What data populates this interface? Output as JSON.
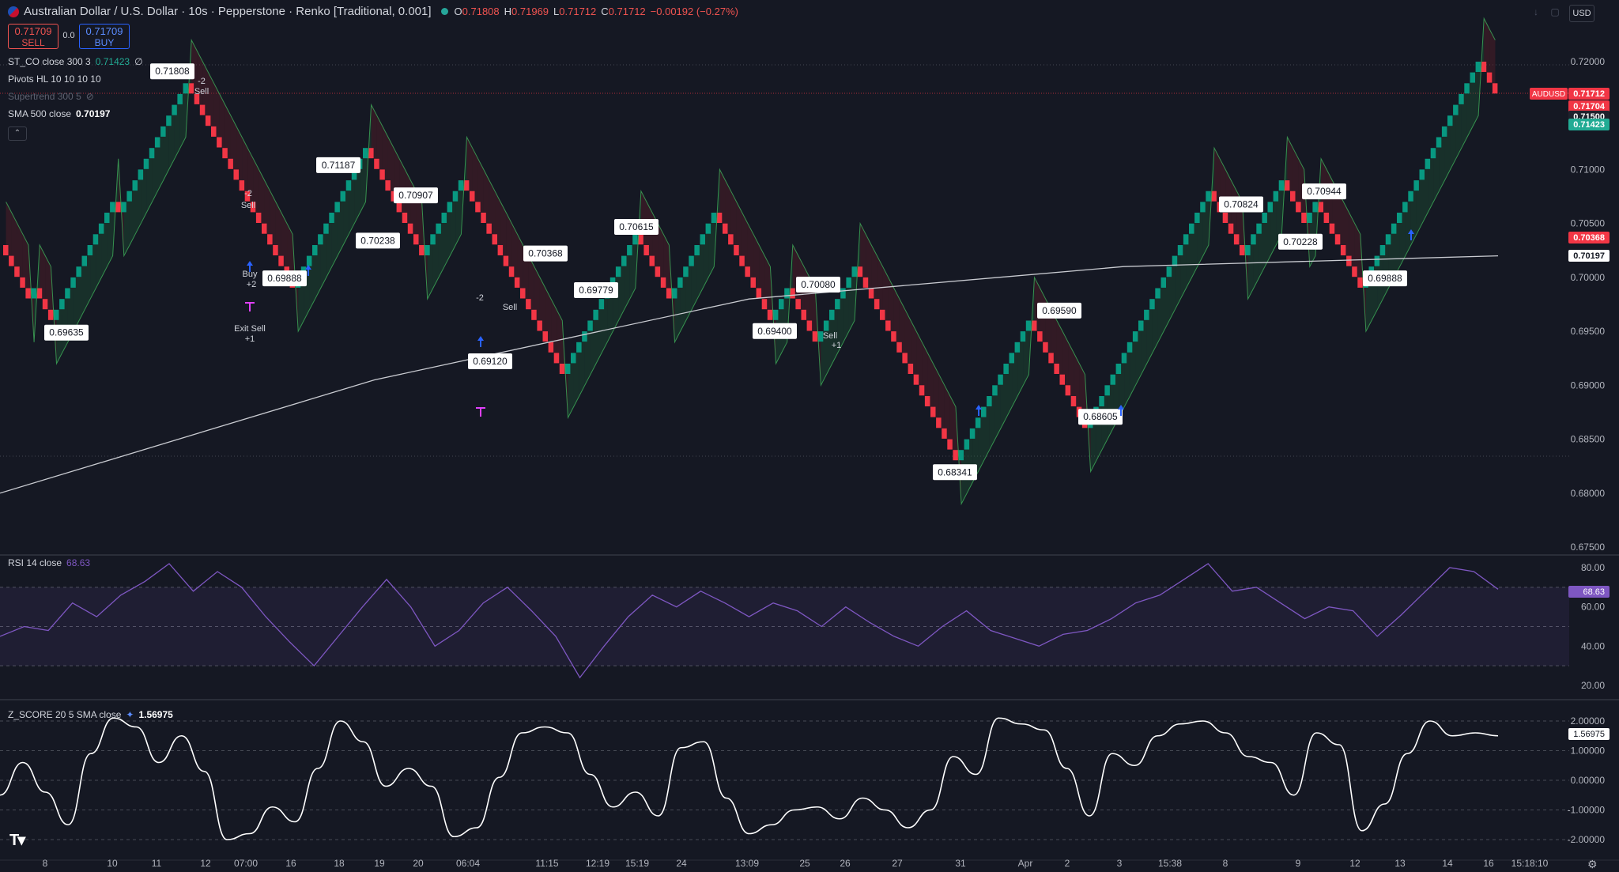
{
  "header": {
    "title": "Australian Dollar / U.S. Dollar · 10s · Pepperstone · Renko [Traditional, 0.001]",
    "open_label": "O",
    "open": "0.71808",
    "high_label": "H",
    "high": "0.71969",
    "low_label": "L",
    "low": "0.71712",
    "close_label": "C",
    "close": "0.71712",
    "change": "−0.00192 (−0.27%)"
  },
  "trade": {
    "sell_price": "0.71709",
    "sell_label": "SELL",
    "buy_price": "0.71709",
    "buy_label": "BUY",
    "spread": "0.0"
  },
  "currency_button": "USD",
  "legend": {
    "st_co": {
      "label": "ST_CO close 300 3",
      "value": "0.71423",
      "extra": "∅"
    },
    "pivots": {
      "label": "Pivots HL 10 10 10 10"
    },
    "supertrend": {
      "label": "Supertrend 300 5"
    },
    "sma": {
      "label": "SMA 500 close",
      "value": "0.70197"
    },
    "rsi": {
      "label": "RSI 14 close",
      "value": "68.63"
    },
    "zscore": {
      "label": "Z_SCORE 20 5 SMA close",
      "value": "1.56975"
    }
  },
  "price_axis": {
    "ticks": [
      "0.72000",
      "0.71500",
      "0.71000",
      "0.70500",
      "0.70000",
      "0.69500",
      "0.69000",
      "0.68500",
      "0.68000",
      "0.67500"
    ],
    "symbol_tag": "AUDUSD",
    "badges": [
      {
        "text": "0.71712",
        "color": "#f23645"
      },
      {
        "text": "0.71704",
        "color": "#f23645"
      },
      {
        "text": "0.71500",
        "color": "#1e222d"
      },
      {
        "text": "0.71423",
        "color": "#22ab94"
      },
      {
        "text": "0.70368",
        "color": "#f23645"
      },
      {
        "text": "0.70197",
        "color": "#ffffff"
      }
    ]
  },
  "rsi_axis": {
    "ticks": [
      "80.00",
      "60.00",
      "40.00",
      "20.00"
    ],
    "badge": "68.63",
    "badge_color": "#7e57c2"
  },
  "z_axis": {
    "ticks": [
      "2.00000",
      "1.00000",
      "0.00000",
      "-1.00000",
      "-2.00000"
    ],
    "badge": "1.56975"
  },
  "time_axis": [
    "8",
    "10",
    "11",
    "12",
    "07:00",
    "16",
    "18",
    "19",
    "20",
    "06:04",
    "11:15",
    "12:19",
    "15:19",
    "24",
    "13:09",
    "25",
    "26",
    "27",
    "31",
    "Apr",
    "2",
    "3",
    "15:38",
    "8",
    "9",
    "12",
    "13",
    "14",
    "16"
  ],
  "time_clock": "15:18:10",
  "pivot_labels": [
    "0.71808",
    "0.69635",
    "0.69888",
    "0.71187",
    "0.70238",
    "0.70907",
    "0.69120",
    "0.70368",
    "0.69779",
    "0.70615",
    "0.69400",
    "0.70080",
    "0.69590",
    "0.68341",
    "0.68605",
    "0.70824",
    "0.70228",
    "0.70944",
    "0.69888"
  ],
  "signals": [
    {
      "text": "-2"
    },
    {
      "text": "Sell"
    },
    {
      "text": "Buy"
    },
    {
      "text": "+2"
    },
    {
      "text": "+1"
    },
    {
      "text": "Exit Sell"
    }
  ],
  "colors": {
    "up": "#089981",
    "down": "#f23645",
    "sma": "#c9cbd1",
    "rsi": "#7e57c2",
    "z": "#ffffff",
    "bg": "#151823",
    "grid": "#2a2e39"
  },
  "chart_data": [
    {
      "type": "line",
      "title": "Australian Dollar / U.S. Dollar · 10s · Pepperstone · Renko [Traditional, 0.001]",
      "pane": "price",
      "ylim": [
        0.6725,
        0.7225
      ],
      "series": [
        {
          "name": "",
          "kind": "renko",
          "pivots": [
            0.7031,
            0.7005,
            0.698,
            0.699,
            0.6964,
            0.703,
            0.7068,
            0.7061,
            0.7092,
            0.7181,
            0.7168,
            0.707,
            0.7024,
            0.699,
            0.704,
            0.7118,
            0.7024,
            0.7065,
            0.709,
            0.6912,
            0.7036,
            0.6978,
            0.7061,
            0.696,
            0.6986,
            0.694,
            0.698,
            0.7008,
            0.6994,
            0.6905,
            0.685,
            0.6834,
            0.69,
            0.6959,
            0.6861,
            0.688,
            0.691,
            0.695,
            0.7082,
            0.7023,
            0.7094,
            0.705,
            0.7072,
            0.6989,
            0.706,
            0.7197,
            0.7171
          ]
        },
        {
          "name": "SMA 500 close",
          "x": [
            0,
            0.25,
            0.5,
            0.75,
            1.0
          ],
          "values": [
            0.68,
            0.6905,
            0.698,
            0.701,
            0.702
          ]
        }
      ]
    },
    {
      "type": "line",
      "title": "RSI 14 close",
      "pane": "rsi",
      "ylim": [
        20,
        80
      ],
      "levels": [
        70,
        50,
        30
      ],
      "series": [
        {
          "name": "RSI 14 close",
          "values": [
            45,
            50,
            48,
            62,
            55,
            66,
            73,
            82,
            68,
            78,
            70,
            55,
            42,
            30,
            45,
            60,
            74,
            60,
            40,
            48,
            62,
            70,
            58,
            45,
            24,
            40,
            55,
            66,
            60,
            68,
            62,
            55,
            62,
            58,
            50,
            60,
            52,
            45,
            40,
            50,
            58,
            48,
            44,
            40,
            46,
            48,
            54,
            62,
            66,
            74,
            82,
            68,
            70,
            62,
            54,
            60,
            58,
            45,
            56,
            68,
            80,
            78,
            69
          ]
        }
      ]
    },
    {
      "type": "line",
      "title": "Z_SCORE 20 5 SMA close",
      "pane": "zscore",
      "ylim": [
        -2.2,
        2.2
      ],
      "levels": [
        2,
        1,
        0,
        -1,
        -2
      ],
      "series": [
        {
          "name": "Z_SCORE 20 5 SMA close",
          "values": [
            -0.5,
            0.6,
            -0.4,
            -1.5,
            0.9,
            2.1,
            1.8,
            0.6,
            1.5,
            0.3,
            -2.0,
            -1.8,
            -0.9,
            -1.4,
            0.4,
            2.0,
            1.3,
            -0.2,
            0.4,
            -0.2,
            -1.9,
            -1.6,
            0.1,
            1.6,
            1.8,
            1.6,
            0.2,
            -0.9,
            -0.4,
            -1.2,
            1.1,
            1.3,
            -0.6,
            -1.8,
            -1.5,
            -1.0,
            -0.9,
            -1.3,
            -0.6,
            -1.0,
            -1.6,
            -1.0,
            0.8,
            0.2,
            2.1,
            1.9,
            1.7,
            0.4,
            -1.2,
            0.9,
            0.5,
            1.5,
            1.9,
            2.0,
            1.6,
            0.8,
            0.6,
            -0.5,
            1.6,
            1.2,
            -1.7,
            -0.8,
            0.9,
            2.0,
            1.5,
            1.6,
            1.5
          ]
        }
      ]
    }
  ]
}
